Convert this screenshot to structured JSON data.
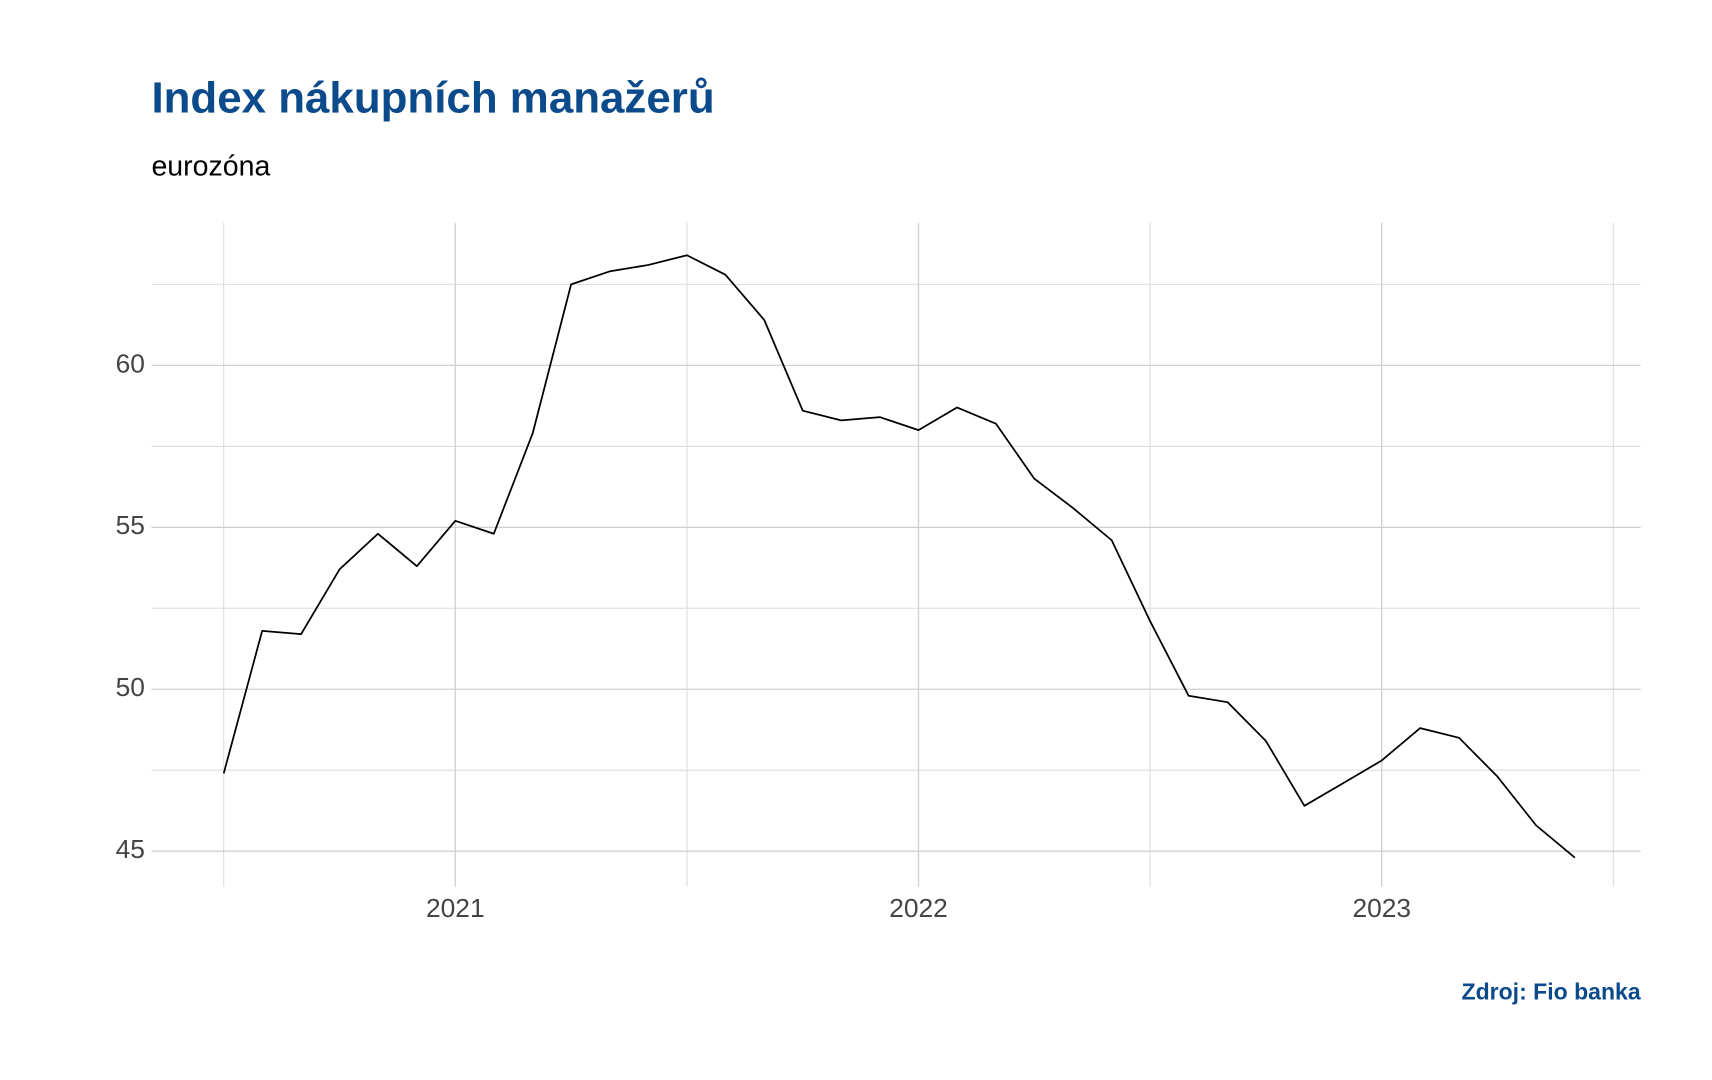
{
  "chart_data": {
    "type": "line",
    "title": "Index nákupních manažerů",
    "subtitle": "eurozóna",
    "source": "Zdroj: Fio banka",
    "x": [
      2020.5,
      2020.583,
      2020.667,
      2020.75,
      2020.833,
      2020.917,
      2021,
      2021.083,
      2021.167,
      2021.25,
      2021.333,
      2021.417,
      2021.5,
      2021.583,
      2021.667,
      2021.75,
      2021.833,
      2021.917,
      2022,
      2022.083,
      2022.167,
      2022.25,
      2022.333,
      2022.417,
      2022.5,
      2022.583,
      2022.667,
      2022.75,
      2022.833,
      2022.917,
      2023,
      2023.083,
      2023.167,
      2023.25,
      2023.333,
      2023.417
    ],
    "series": [
      {
        "color": "#000000",
        "values": [
          47.4,
          51.8,
          51.7,
          53.7,
          54.8,
          53.8,
          55.2,
          54.8,
          57.9,
          62.5,
          62.9,
          63.1,
          63.4,
          62.8,
          61.4,
          58.6,
          58.3,
          58.4,
          58.0,
          58.7,
          58.2,
          56.5,
          55.6,
          54.6,
          52.1,
          49.8,
          49.6,
          48.4,
          46.4,
          47.1,
          47.8,
          48.8,
          48.5,
          47.3,
          45.8,
          44.8
        ]
      }
    ],
    "xlim": [
      2020.344,
      2023.559
    ],
    "xticks": [
      2021,
      2022,
      2023
    ],
    "x_minor_ticks": [
      2020.5,
      2021.5,
      2022.5,
      2023.5
    ],
    "ylim": [
      43.9,
      64.4
    ],
    "yticks": [
      45,
      50,
      55,
      60
    ],
    "y_minor_ticks": [
      47.5,
      52.5,
      57.5,
      62.5
    ],
    "grid": true
  }
}
